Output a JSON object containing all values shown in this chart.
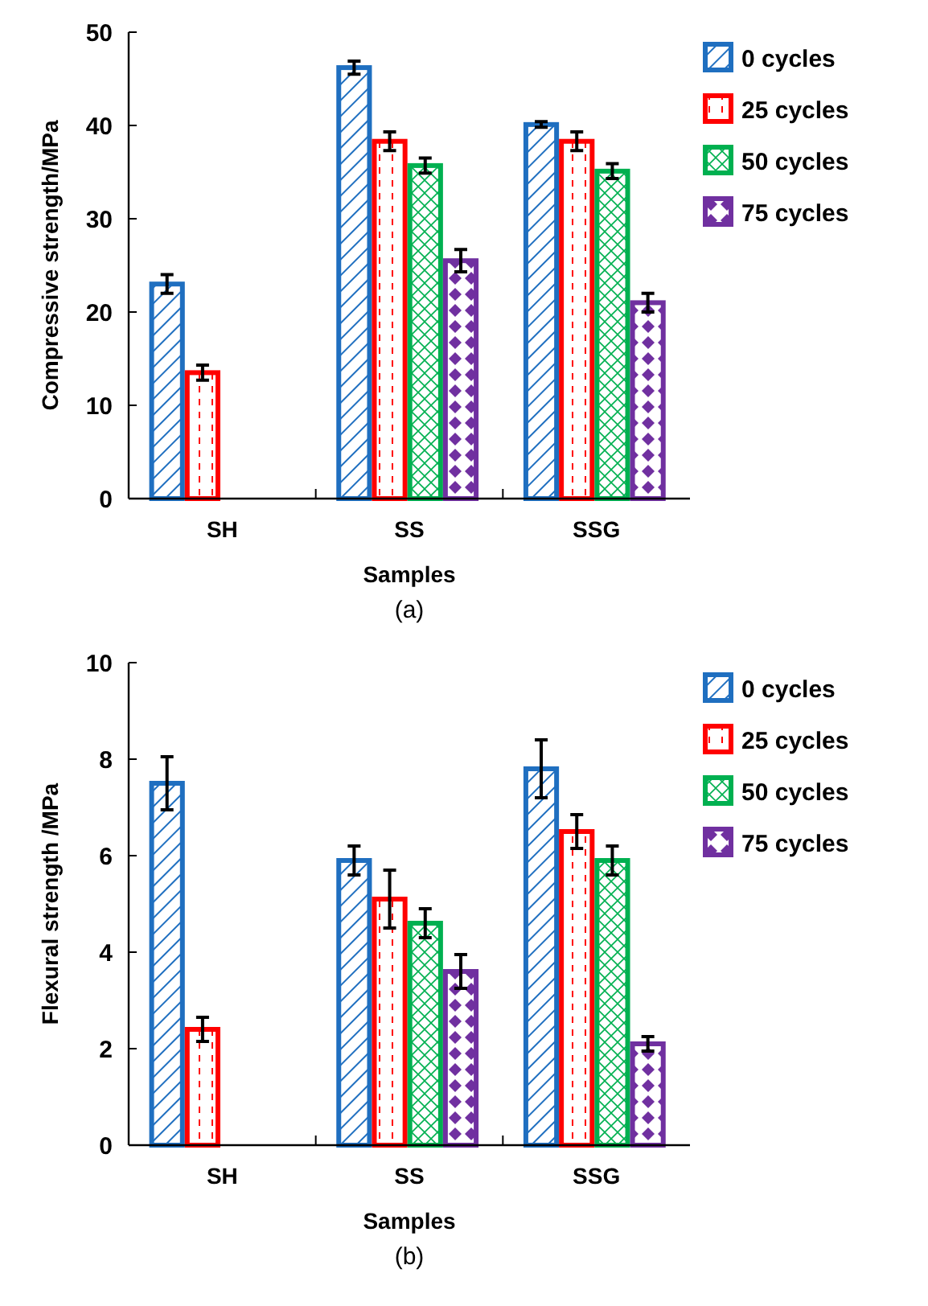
{
  "chart_data": [
    {
      "type": "bar",
      "ylabel": "Compressive strength/MPa",
      "xlabel": "Samples",
      "annotations": [
        "(a)"
      ],
      "categories": [
        "SH",
        "SS",
        "SSG"
      ],
      "ylim": [
        0,
        50
      ],
      "yticks": [
        0,
        10,
        20,
        30,
        40,
        50
      ],
      "legend": "top right",
      "grid": false,
      "series": [
        {
          "name": "0 cycles",
          "color": "#1f6fc0",
          "values": [
            23,
            46.2,
            40.1
          ],
          "errors": [
            1,
            0.7,
            0.3
          ]
        },
        {
          "name": "25 cycles",
          "color": "#ff0000",
          "values": [
            13.5,
            38.3,
            38.3
          ],
          "errors": [
            0.8,
            1,
            1
          ]
        },
        {
          "name": "50 cycles",
          "color": "#00b050",
          "values": [
            null,
            35.7,
            35.1
          ],
          "errors": [
            null,
            0.8,
            0.8
          ]
        },
        {
          "name": "75 cycles",
          "color": "#7030a0",
          "values": [
            null,
            25.5,
            21
          ],
          "errors": [
            null,
            1.2,
            1
          ]
        }
      ]
    },
    {
      "type": "bar",
      "ylabel": "Flexural strength /MPa",
      "xlabel": "Samples",
      "annotations": [
        "(b)"
      ],
      "categories": [
        "SH",
        "SS",
        "SSG"
      ],
      "ylim": [
        0,
        10
      ],
      "yticks": [
        0,
        2,
        4,
        6,
        8,
        10
      ],
      "legend": "top right",
      "grid": false,
      "series": [
        {
          "name": "0 cycles",
          "color": "#1f6fc0",
          "values": [
            7.5,
            5.9,
            7.8
          ],
          "errors": [
            0.55,
            0.3,
            0.6
          ]
        },
        {
          "name": "25 cycles",
          "color": "#ff0000",
          "values": [
            2.4,
            5.1,
            6.5
          ],
          "errors": [
            0.25,
            0.6,
            0.35
          ]
        },
        {
          "name": "50 cycles",
          "color": "#00b050",
          "values": [
            null,
            4.6,
            5.9
          ],
          "errors": [
            null,
            0.3,
            0.3
          ]
        },
        {
          "name": "75 cycles",
          "color": "#7030a0",
          "values": [
            null,
            3.6,
            2.1
          ],
          "errors": [
            null,
            0.35,
            0.15
          ]
        }
      ]
    }
  ]
}
